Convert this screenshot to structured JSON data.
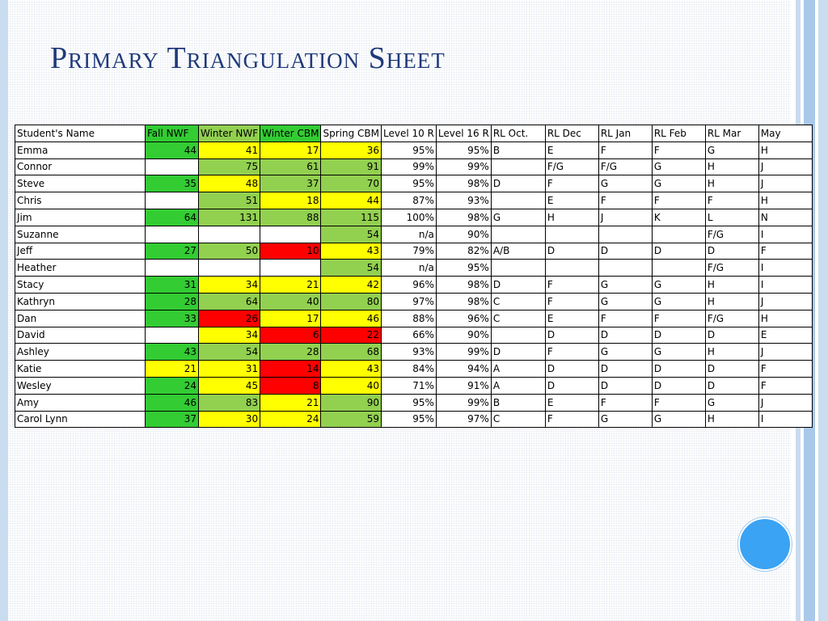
{
  "title": "Primary Triangulation Sheet",
  "colors": {
    "green": "#33cc33",
    "lightgreen": "#92d050",
    "yellow": "#ffff00",
    "red": "#ff0000",
    "title": "#1f3a7a",
    "accent_circle": "#3aa3f4"
  },
  "table": {
    "headers": [
      "Student's Name",
      "Fall NWF",
      "Winter NWF",
      "Winter CBM",
      "Spring CBM",
      "Level 10 R",
      "Level 16 R",
      "RL Oct.",
      "RL Dec",
      "RL Jan",
      "RL Feb",
      "RL Mar",
      "May"
    ],
    "header_colors": [
      "",
      "green",
      "lightgreen",
      "green",
      "",
      "",
      "",
      "",
      "",
      "",
      "",
      "",
      ""
    ],
    "rows": [
      {
        "cells": [
          "Emma",
          "44",
          "41",
          "17",
          "36",
          "95%",
          "95%",
          "B",
          "E",
          "F",
          "F",
          "G",
          "H"
        ],
        "colors": [
          "",
          "green",
          "yellow",
          "yellow",
          "yellow",
          "",
          "",
          "",
          "",
          "",
          "",
          "",
          ""
        ]
      },
      {
        "cells": [
          "Connor",
          "",
          "75",
          "61",
          "91",
          "99%",
          "99%",
          "",
          "F/G",
          "F/G",
          "G",
          "H",
          "J"
        ],
        "colors": [
          "",
          "",
          "lightgreen",
          "lightgreen",
          "lightgreen",
          "",
          "",
          "",
          "",
          "",
          "",
          "",
          ""
        ]
      },
      {
        "cells": [
          "Steve",
          "35",
          "48",
          "37",
          "70",
          "95%",
          "98%",
          "D",
          "F",
          "G",
          "G",
          "H",
          "J"
        ],
        "colors": [
          "",
          "green",
          "yellow",
          "lightgreen",
          "lightgreen",
          "",
          "",
          "",
          "",
          "",
          "",
          "",
          ""
        ]
      },
      {
        "cells": [
          "Chris",
          "",
          "51",
          "18",
          "44",
          "87%",
          "93%",
          "",
          "E",
          "F",
          "F",
          "F",
          "H"
        ],
        "colors": [
          "",
          "",
          "lightgreen",
          "yellow",
          "yellow",
          "",
          "",
          "",
          "",
          "",
          "",
          "",
          ""
        ]
      },
      {
        "cells": [
          "Jim",
          "64",
          "131",
          "88",
          "115",
          "100%",
          "98%",
          "G",
          "H",
          "J",
          "K",
          "L",
          "N"
        ],
        "colors": [
          "",
          "green",
          "lightgreen",
          "lightgreen",
          "lightgreen",
          "",
          "",
          "",
          "",
          "",
          "",
          "",
          ""
        ]
      },
      {
        "cells": [
          "Suzanne",
          "",
          "",
          "",
          "54",
          "n/a",
          "90%",
          "",
          "",
          "",
          "",
          "F/G",
          "I"
        ],
        "colors": [
          "",
          "",
          "",
          "",
          "lightgreen",
          "",
          "",
          "",
          "",
          "",
          "",
          "",
          ""
        ]
      },
      {
        "cells": [
          "Jeff",
          "27",
          "50",
          "10",
          "43",
          "79%",
          "82%",
          "A/B",
          "D",
          "D",
          "D",
          "D",
          "F"
        ],
        "colors": [
          "",
          "green",
          "lightgreen",
          "red",
          "yellow",
          "",
          "",
          "",
          "",
          "",
          "",
          "",
          ""
        ]
      },
      {
        "cells": [
          "Heather",
          "",
          "",
          "",
          "54",
          "n/a",
          "95%",
          "",
          "",
          "",
          "",
          "F/G",
          "I"
        ],
        "colors": [
          "",
          "",
          "",
          "",
          "lightgreen",
          "",
          "",
          "",
          "",
          "",
          "",
          "",
          ""
        ]
      },
      {
        "cells": [
          "Stacy",
          "31",
          "34",
          "21",
          "42",
          "96%",
          "98%",
          "D",
          "F",
          "G",
          "G",
          "H",
          "I"
        ],
        "colors": [
          "",
          "green",
          "yellow",
          "yellow",
          "yellow",
          "",
          "",
          "",
          "",
          "",
          "",
          "",
          ""
        ]
      },
      {
        "cells": [
          "Kathryn",
          "28",
          "64",
          "40",
          "80",
          "97%",
          "98%",
          "C",
          "F",
          "G",
          "G",
          "H",
          "J"
        ],
        "colors": [
          "",
          "green",
          "lightgreen",
          "lightgreen",
          "lightgreen",
          "",
          "",
          "",
          "",
          "",
          "",
          "",
          ""
        ]
      },
      {
        "cells": [
          "Dan",
          "33",
          "26",
          "17",
          "46",
          "88%",
          "96%",
          "C",
          "E",
          "F",
          "F",
          "F/G",
          "H"
        ],
        "colors": [
          "",
          "green",
          "red",
          "yellow",
          "yellow",
          "",
          "",
          "",
          "",
          "",
          "",
          "",
          ""
        ]
      },
      {
        "cells": [
          "David",
          "",
          "34",
          "6",
          "22",
          "66%",
          "90%",
          "",
          "D",
          "D",
          "D",
          "D",
          "E"
        ],
        "colors": [
          "",
          "",
          "yellow",
          "red",
          "red",
          "",
          "",
          "",
          "",
          "",
          "",
          "",
          ""
        ]
      },
      {
        "cells": [
          "Ashley",
          "43",
          "54",
          "28",
          "68",
          "93%",
          "99%",
          "D",
          "F",
          "G",
          "G",
          "H",
          "J"
        ],
        "colors": [
          "",
          "green",
          "lightgreen",
          "lightgreen",
          "lightgreen",
          "",
          "",
          "",
          "",
          "",
          "",
          "",
          ""
        ]
      },
      {
        "cells": [
          "Katie",
          "21",
          "31",
          "14",
          "43",
          "84%",
          "94%",
          "A",
          "D",
          "D",
          "D",
          "D",
          "F"
        ],
        "colors": [
          "",
          "yellow",
          "yellow",
          "red",
          "yellow",
          "",
          "",
          "",
          "",
          "",
          "",
          "",
          ""
        ]
      },
      {
        "cells": [
          "Wesley",
          "24",
          "45",
          "8",
          "40",
          "71%",
          "91%",
          "A",
          "D",
          "D",
          "D",
          "D",
          "F"
        ],
        "colors": [
          "",
          "green",
          "yellow",
          "red",
          "yellow",
          "",
          "",
          "",
          "",
          "",
          "",
          "",
          ""
        ]
      },
      {
        "cells": [
          "Amy",
          "46",
          "83",
          "21",
          "90",
          "95%",
          "99%",
          "B",
          "E",
          "F",
          "F",
          "G",
          "J"
        ],
        "colors": [
          "",
          "green",
          "lightgreen",
          "yellow",
          "lightgreen",
          "",
          "",
          "",
          "",
          "",
          "",
          "",
          ""
        ]
      },
      {
        "cells": [
          "Carol Lynn",
          "37",
          "30",
          "24",
          "59",
          "95%",
          "97%",
          "C",
          "F",
          "G",
          "G",
          "H",
          "I"
        ],
        "colors": [
          "",
          "green",
          "yellow",
          "yellow",
          "lightgreen",
          "",
          "",
          "",
          "",
          "",
          "",
          "",
          ""
        ]
      }
    ]
  }
}
